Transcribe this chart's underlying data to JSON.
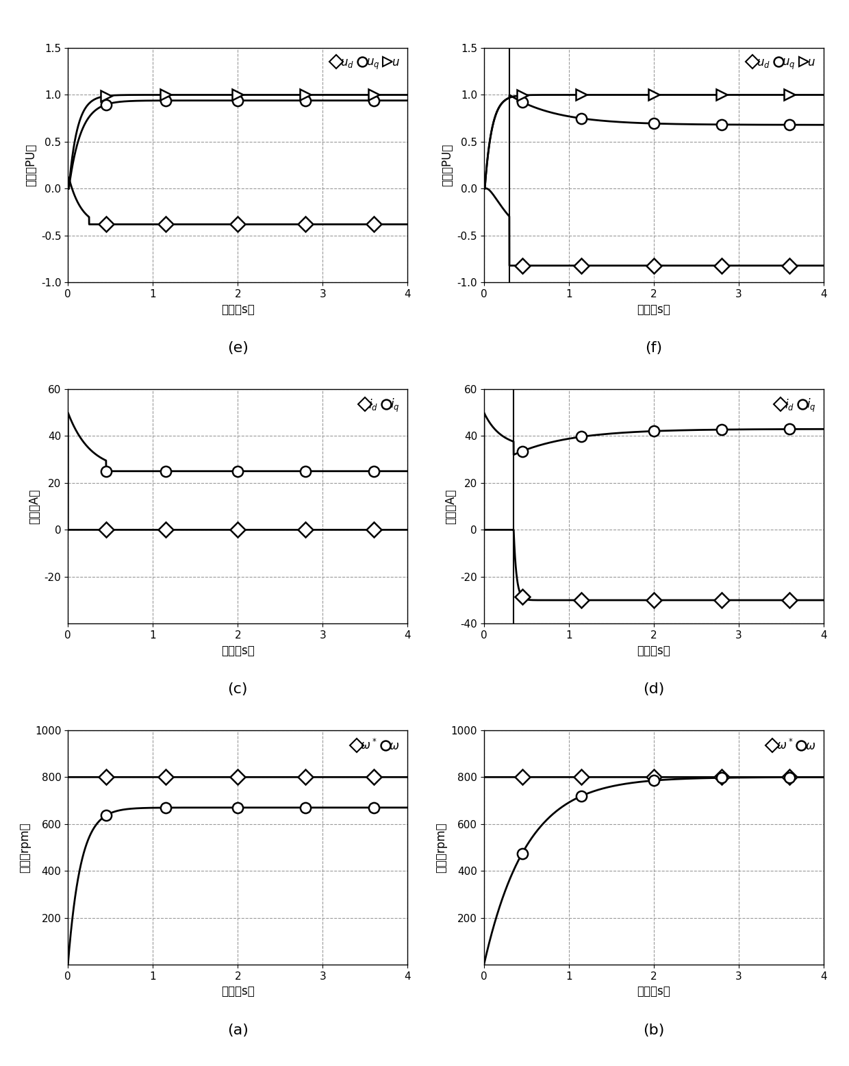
{
  "title_a": "(a)",
  "title_b": "(b)",
  "title_c": "(c)",
  "title_d": "(d)",
  "title_e": "(e)",
  "title_f": "(f)",
  "xlabel": "时间（s）",
  "ylabel_speed": "转速（rpm）",
  "ylabel_current": "电流（A）",
  "ylabel_voltage": "电压（PU）",
  "speed_ylim": [
    0,
    1000
  ],
  "speed_yticks": [
    200,
    400,
    600,
    800,
    1000
  ],
  "current_ylim": [
    -40,
    60
  ],
  "current_c_yticks": [
    -20,
    0,
    20,
    40,
    60
  ],
  "current_d_yticks": [
    -40,
    -20,
    0,
    20,
    40,
    60
  ],
  "voltage_ylim": [
    -1,
    1.5
  ],
  "voltage_yticks": [
    -1,
    -0.5,
    0,
    0.5,
    1,
    1.5
  ],
  "xlim": [
    0,
    4
  ],
  "xticks": [
    0,
    1,
    2,
    3,
    4
  ],
  "marker_positions": [
    0.45,
    1.15,
    2.0,
    2.8,
    3.6
  ],
  "ref_speed": 800,
  "line_color": "black",
  "line_width": 2.0,
  "grid_color": "#999999",
  "grid_linestyle": "--",
  "marker_size": 11
}
